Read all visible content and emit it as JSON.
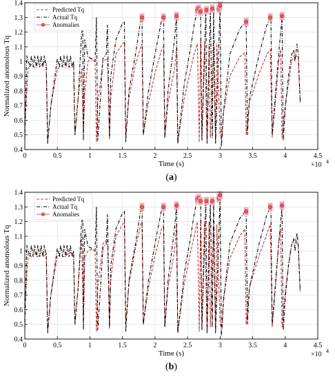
{
  "chart_data": [
    {
      "type": "line",
      "caption": "(a)",
      "xlabel": "Time (s)",
      "ylabel": "Normalized anomolous Tq",
      "x_exponent_label": "×10",
      "x_exponent": "4",
      "xlim": [
        0,
        4.5
      ],
      "ylim": [
        0.4,
        1.4
      ],
      "xticks": [
        "0",
        "0.5",
        "1",
        "1.5",
        "2",
        "2.5",
        "3",
        "3.5",
        "4",
        "4.5"
      ],
      "yticks": [
        "0.4",
        "0.5",
        "0.6",
        "0.7",
        "0.8",
        "0.9",
        "1",
        "1.1",
        "1.2",
        "1.3",
        "1.4"
      ],
      "legend_position": "top-left",
      "grid": true,
      "series": [
        {
          "name": "Predicted Tq",
          "color": "#cc3333",
          "x": [
            0,
            0.05,
            0.1,
            0.15,
            0.2,
            0.25,
            0.3,
            0.33,
            0.35,
            0.4,
            0.5,
            0.6,
            0.7,
            0.75,
            0.77,
            0.82,
            0.87,
            0.9,
            0.92,
            0.97,
            1.02,
            1.08,
            1.1,
            1.12,
            1.2,
            1.27,
            1.3,
            1.32,
            1.4,
            1.5,
            1.53,
            1.55,
            1.6,
            1.7,
            1.78,
            1.8,
            1.82,
            1.9,
            2.0,
            2.1,
            2.13,
            2.15,
            2.2,
            2.3,
            2.33,
            2.35,
            2.45,
            2.55,
            2.6,
            2.65,
            2.68,
            2.7,
            2.72,
            2.76,
            2.8,
            2.83,
            2.85,
            2.9,
            2.93,
            2.95,
            3.0,
            3.03,
            3.05,
            3.15,
            3.3,
            3.38,
            3.4,
            3.45,
            3.6,
            3.72,
            3.77,
            3.8,
            3.85,
            3.9,
            3.93,
            3.95,
            4.0,
            4.05,
            4.1,
            4.15,
            4.2,
            4.23
          ],
          "y": [
            0.55,
            0.95,
            0.98,
            0.96,
            0.99,
            0.97,
            1.0,
            0.99,
            0.45,
            0.7,
            0.95,
            0.98,
            0.96,
            0.99,
            0.5,
            0.75,
            0.95,
            0.5,
            0.78,
            1.0,
            1.02,
            1.0,
            0.45,
            0.72,
            1.0,
            1.02,
            0.47,
            0.75,
            1.05,
            1.12,
            1.13,
            0.5,
            0.75,
            0.98,
            1.1,
            1.12,
            0.5,
            0.72,
            0.92,
            1.08,
            1.1,
            0.48,
            0.72,
            0.95,
            1.1,
            0.45,
            0.75,
            0.95,
            1.05,
            1.12,
            0.45,
            1.15,
            0.5,
            1.12,
            0.45,
            1.12,
            0.48,
            1.1,
            0.45,
            1.12,
            0.5,
            0.48,
            0.65,
            0.9,
            1.03,
            1.06,
            0.5,
            0.72,
            0.92,
            1.05,
            1.08,
            0.48,
            0.72,
            1.0,
            1.08,
            0.48,
            0.7,
            0.85,
            1.0,
            1.05,
            1.02,
            0.72
          ]
        },
        {
          "name": "Actual Tq",
          "color": "#000000",
          "x": [
            0,
            0.03,
            0.08,
            0.1,
            0.13,
            0.15,
            0.18,
            0.2,
            0.23,
            0.25,
            0.28,
            0.3,
            0.33,
            0.35,
            0.4,
            0.5,
            0.53,
            0.55,
            0.58,
            0.6,
            0.63,
            0.65,
            0.68,
            0.7,
            0.73,
            0.75,
            0.77,
            0.82,
            0.87,
            0.89,
            0.9,
            0.92,
            0.97,
            1.02,
            1.08,
            1.1,
            1.12,
            1.2,
            1.25,
            1.27,
            1.3,
            1.32,
            1.4,
            1.5,
            1.53,
            1.55,
            1.6,
            1.7,
            1.78,
            1.8,
            1.82,
            1.9,
            2.0,
            2.1,
            2.13,
            2.15,
            2.2,
            2.3,
            2.33,
            2.35,
            2.45,
            2.55,
            2.6,
            2.65,
            2.7,
            2.72,
            2.78,
            2.8,
            2.85,
            2.88,
            2.9,
            2.93,
            3.0,
            3.02,
            3.05,
            3.15,
            3.3,
            3.4,
            3.42,
            3.45,
            3.6,
            3.72,
            3.78,
            3.8,
            3.85,
            3.9,
            3.95,
            3.97,
            4.0,
            4.05,
            4.1,
            4.13,
            4.15,
            4.18,
            4.2,
            4.23
          ],
          "y": [
            0.47,
            1.04,
            0.96,
            1.04,
            0.96,
            1.04,
            0.96,
            1.04,
            0.96,
            1.04,
            0.96,
            1.04,
            0.96,
            0.44,
            0.7,
            1.02,
            0.96,
            1.04,
            0.96,
            1.04,
            0.96,
            1.04,
            0.96,
            1.04,
            0.96,
            1.0,
            0.5,
            0.75,
            1.18,
            1.24,
            0.46,
            1.15,
            1.03,
            1.02,
            1.0,
            1.3,
            0.46,
            1.02,
            1.05,
            1.25,
            0.48,
            0.9,
            1.15,
            1.26,
            1.27,
            0.45,
            0.8,
            1.05,
            1.28,
            1.3,
            0.5,
            0.8,
            1.05,
            1.28,
            1.3,
            0.48,
            0.8,
            1.15,
            1.31,
            0.44,
            0.85,
            1.1,
            1.25,
            1.35,
            1.35,
            0.46,
            1.35,
            0.44,
            1.36,
            0.48,
            1.36,
            0.44,
            1.38,
            0.42,
            0.65,
            1.05,
            1.22,
            1.28,
            0.5,
            0.75,
            1.05,
            1.25,
            1.3,
            0.5,
            0.78,
            1.05,
            1.3,
            0.46,
            0.68,
            0.9,
            1.05,
            1.08,
            1.0,
            1.12,
            1.05,
            0.72
          ]
        },
        {
          "name": "Anomalies",
          "color": "#e06060",
          "x": [
            1.8,
            2.13,
            2.33,
            2.65,
            2.67,
            2.7,
            2.79,
            2.88,
            2.98,
            3.0,
            3.4,
            3.77,
            3.95
          ],
          "y": [
            1.3,
            1.3,
            1.31,
            1.35,
            1.36,
            1.34,
            1.35,
            1.36,
            1.36,
            1.38,
            1.27,
            1.3,
            1.31
          ]
        }
      ]
    },
    {
      "type": "line",
      "caption": "(b)",
      "xlabel": "Time (s)",
      "ylabel": "Normalized anomolous Tq",
      "x_exponent_label": "×10",
      "x_exponent": "4",
      "xlim": [
        0,
        4.5
      ],
      "ylim": [
        0.4,
        1.4
      ],
      "xticks": [
        "0",
        "0.5",
        "1",
        "1.5",
        "2",
        "2.5",
        "3",
        "3.5",
        "4",
        "4.5"
      ],
      "yticks": [
        "0.4",
        "0.5",
        "0.6",
        "0.7",
        "0.8",
        "0.9",
        "1",
        "1.1",
        "1.2",
        "1.3",
        "1.4"
      ],
      "legend_position": "top-left",
      "grid": true,
      "series": [
        {
          "name": "Predicted Tq",
          "color": "#cc3333",
          "x": [
            0,
            0.05,
            0.1,
            0.15,
            0.2,
            0.25,
            0.3,
            0.33,
            0.35,
            0.4,
            0.5,
            0.6,
            0.7,
            0.75,
            0.77,
            0.82,
            0.87,
            0.9,
            0.92,
            0.97,
            1.02,
            1.08,
            1.1,
            1.12,
            1.2,
            1.27,
            1.3,
            1.32,
            1.4,
            1.5,
            1.53,
            1.55,
            1.6,
            1.7,
            1.78,
            1.8,
            1.82,
            1.9,
            2.0,
            2.1,
            2.13,
            2.15,
            2.2,
            2.3,
            2.33,
            2.35,
            2.45,
            2.55,
            2.6,
            2.65,
            2.68,
            2.7,
            2.72,
            2.76,
            2.8,
            2.83,
            2.85,
            2.9,
            2.93,
            2.95,
            3.0,
            3.03,
            3.05,
            3.15,
            3.3,
            3.38,
            3.4,
            3.45,
            3.6,
            3.72,
            3.77,
            3.8,
            3.85,
            3.9,
            3.93,
            3.95,
            4.0,
            4.05,
            4.1,
            4.15,
            4.2,
            4.23
          ],
          "y": [
            0.6,
            0.98,
            0.96,
            0.99,
            0.96,
            0.99,
            0.96,
            0.99,
            0.45,
            0.7,
            0.97,
            0.96,
            0.99,
            0.96,
            0.5,
            0.76,
            1.1,
            0.5,
            0.95,
            1.0,
            1.01,
            1.0,
            0.45,
            0.75,
            1.05,
            1.08,
            0.47,
            0.8,
            1.1,
            1.18,
            1.2,
            0.5,
            0.78,
            1.02,
            1.18,
            1.2,
            0.5,
            0.75,
            0.97,
            1.15,
            1.17,
            0.48,
            0.75,
            1.0,
            1.18,
            0.45,
            0.78,
            1.0,
            1.1,
            1.2,
            0.45,
            1.22,
            0.5,
            1.2,
            0.45,
            1.2,
            0.48,
            1.17,
            0.45,
            1.18,
            0.5,
            0.48,
            0.68,
            0.95,
            1.1,
            1.15,
            0.5,
            0.75,
            0.97,
            1.12,
            1.18,
            0.48,
            0.75,
            1.05,
            1.15,
            0.48,
            0.72,
            0.9,
            1.05,
            1.08,
            1.04,
            0.72
          ]
        },
        {
          "name": "Actual Tq",
          "color": "#000000",
          "x": [
            0,
            0.03,
            0.08,
            0.1,
            0.13,
            0.15,
            0.18,
            0.2,
            0.23,
            0.25,
            0.28,
            0.3,
            0.33,
            0.35,
            0.4,
            0.5,
            0.53,
            0.55,
            0.58,
            0.6,
            0.63,
            0.65,
            0.68,
            0.7,
            0.73,
            0.75,
            0.77,
            0.82,
            0.87,
            0.89,
            0.9,
            0.92,
            0.97,
            1.02,
            1.08,
            1.1,
            1.12,
            1.2,
            1.25,
            1.27,
            1.3,
            1.32,
            1.4,
            1.5,
            1.53,
            1.55,
            1.6,
            1.7,
            1.78,
            1.8,
            1.82,
            1.9,
            2.0,
            2.1,
            2.13,
            2.15,
            2.2,
            2.3,
            2.33,
            2.35,
            2.45,
            2.55,
            2.6,
            2.65,
            2.7,
            2.72,
            2.78,
            2.8,
            2.85,
            2.88,
            2.9,
            2.93,
            3.0,
            3.02,
            3.05,
            3.15,
            3.3,
            3.4,
            3.42,
            3.45,
            3.6,
            3.72,
            3.78,
            3.8,
            3.85,
            3.9,
            3.95,
            3.97,
            4.0,
            4.05,
            4.1,
            4.13,
            4.15,
            4.18,
            4.2,
            4.23
          ],
          "y": [
            0.47,
            1.04,
            0.96,
            1.04,
            0.96,
            1.04,
            0.96,
            1.04,
            0.96,
            1.04,
            0.96,
            1.04,
            0.96,
            0.44,
            0.7,
            1.02,
            0.96,
            1.04,
            0.96,
            1.04,
            0.96,
            1.04,
            0.96,
            1.04,
            0.96,
            1.0,
            0.5,
            0.75,
            1.18,
            1.24,
            0.46,
            1.15,
            1.03,
            1.02,
            1.0,
            1.3,
            0.46,
            1.02,
            1.05,
            1.25,
            0.48,
            0.9,
            1.15,
            1.26,
            1.27,
            0.45,
            0.8,
            1.05,
            1.28,
            1.3,
            0.5,
            0.8,
            1.05,
            1.28,
            1.3,
            0.48,
            0.8,
            1.15,
            1.31,
            0.44,
            0.85,
            1.1,
            1.25,
            1.35,
            1.35,
            0.46,
            1.35,
            0.44,
            1.34,
            0.48,
            1.34,
            0.44,
            1.38,
            0.42,
            0.65,
            1.05,
            1.22,
            1.28,
            0.5,
            0.75,
            1.05,
            1.25,
            1.3,
            0.5,
            0.78,
            1.05,
            1.3,
            0.46,
            0.68,
            0.9,
            1.05,
            1.08,
            1.0,
            1.12,
            1.05,
            0.72
          ]
        },
        {
          "name": "Anomalies",
          "color": "#e06060",
          "x": [
            1.8,
            2.13,
            2.33,
            2.65,
            2.67,
            2.7,
            2.79,
            2.88,
            2.98,
            3.0,
            3.4,
            3.77,
            3.95
          ],
          "y": [
            1.3,
            1.3,
            1.31,
            1.35,
            1.36,
            1.34,
            1.34,
            1.34,
            1.36,
            1.38,
            1.27,
            1.3,
            1.31
          ]
        }
      ]
    }
  ]
}
